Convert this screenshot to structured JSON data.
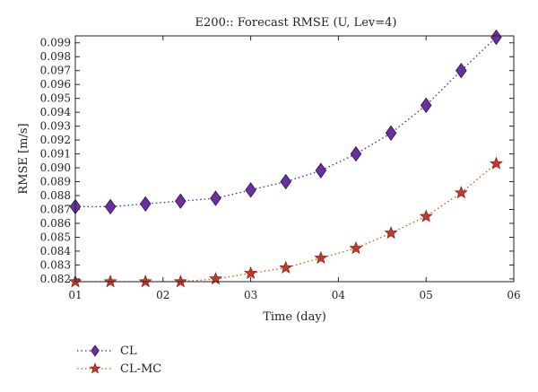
{
  "chart_data": {
    "type": "line",
    "title": "E200:: Forecast RMSE (U, Lev=4)",
    "xlabel": "Time (day)",
    "ylabel": "RMSE [m/s]",
    "xlim": [
      1,
      6
    ],
    "ylim": [
      0.0818,
      0.0995
    ],
    "x_ticks": [
      1,
      2,
      3,
      4,
      5,
      6
    ],
    "x_tick_labels": [
      "01",
      "02",
      "03",
      "04",
      "05",
      "06"
    ],
    "y_ticks": [
      0.082,
      0.083,
      0.084,
      0.085,
      0.086,
      0.087,
      0.088,
      0.089,
      0.09,
      0.091,
      0.092,
      0.093,
      0.094,
      0.095,
      0.096,
      0.097,
      0.098,
      0.099
    ],
    "y_tick_labels": [
      "0.082",
      "0.083",
      "0.084",
      "0.085",
      "0.086",
      "0.087",
      "0.088",
      "0.089",
      "0.090",
      "0.091",
      "0.092",
      "0.093",
      "0.094",
      "0.095",
      "0.096",
      "0.097",
      "0.098",
      "0.099"
    ],
    "grid": false,
    "legend_position": "bottom-left, below plot",
    "series": [
      {
        "name": "CL",
        "marker": "diamond",
        "color": "#6a2fa0",
        "line_color": "#2b2bb8",
        "x": [
          1.0,
          1.4,
          1.8,
          2.2,
          2.6,
          3.0,
          3.4,
          3.8,
          4.2,
          4.6,
          5.0,
          5.4,
          5.8
        ],
        "values": [
          0.0872,
          0.0872,
          0.0874,
          0.0876,
          0.0878,
          0.0884,
          0.089,
          0.0898,
          0.091,
          0.0925,
          0.0945,
          0.097,
          0.0994
        ]
      },
      {
        "name": "CL-MC",
        "marker": "star",
        "color": "#c0392b",
        "line_color": "#d35400",
        "x": [
          1.0,
          1.4,
          1.8,
          2.2,
          2.6,
          3.0,
          3.4,
          3.8,
          4.2,
          4.6,
          5.0,
          5.4,
          5.8
        ],
        "values": [
          0.0818,
          0.0818,
          0.0818,
          0.0818,
          0.082,
          0.0824,
          0.0828,
          0.0835,
          0.0842,
          0.0853,
          0.0865,
          0.0882,
          0.0903
        ]
      }
    ]
  }
}
